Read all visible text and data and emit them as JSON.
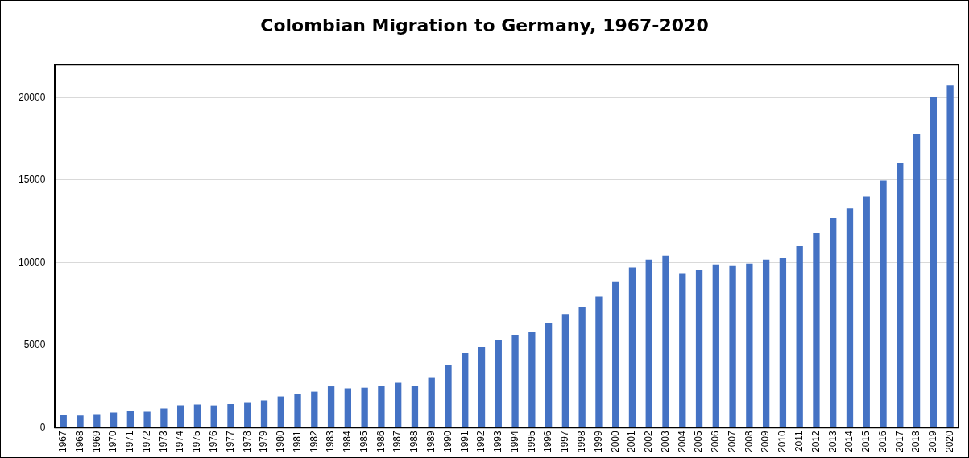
{
  "chart_data": {
    "type": "bar",
    "title": "Colombian Migration to Germany, 1967-2020",
    "categories": [
      "1967",
      "1968",
      "1969",
      "1970",
      "1971",
      "1972",
      "1973",
      "1974",
      "1975",
      "1976",
      "1977",
      "1978",
      "1979",
      "1980",
      "1981",
      "1982",
      "1983",
      "1984",
      "1985",
      "1986",
      "1987",
      "1988",
      "1989",
      "1990",
      "1991",
      "1992",
      "1993",
      "1994",
      "1995",
      "1996",
      "1997",
      "1998",
      "1999",
      "2000",
      "2001",
      "2002",
      "2003",
      "2004",
      "2005",
      "2006",
      "2007",
      "2008",
      "2009",
      "2010",
      "2011",
      "2012",
      "2013",
      "2014",
      "2015",
      "2016",
      "2017",
      "2018",
      "2019",
      "2020"
    ],
    "values": [
      780,
      730,
      820,
      920,
      1020,
      970,
      1160,
      1350,
      1400,
      1350,
      1430,
      1500,
      1650,
      1890,
      2030,
      2180,
      2500,
      2380,
      2420,
      2530,
      2720,
      2530,
      3060,
      3790,
      4510,
      4890,
      5330,
      5620,
      5800,
      6350,
      6880,
      7330,
      7940,
      8860,
      9690,
      10170,
      10410,
      9350,
      9540,
      9880,
      9830,
      9930,
      10170,
      10270,
      10990,
      11810,
      12690,
      13270,
      13990,
      14960,
      16030,
      17770,
      20050,
      20730
    ],
    "color": "#4472c4",
    "ylim": [
      0,
      22000
    ],
    "yticks": [
      0,
      5000,
      10000,
      15000,
      20000
    ],
    "grid": "y"
  }
}
